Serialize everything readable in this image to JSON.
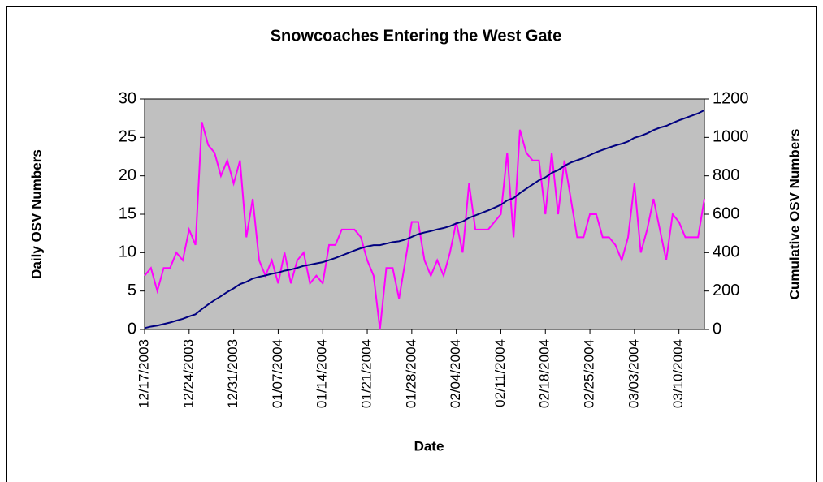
{
  "chart_data": {
    "type": "line",
    "title": "Snowcoaches Entering the West Gate",
    "x_label": "Date",
    "y_label": "Daily OSV Numbers",
    "y2_label": "Cumulative OSV Numbers",
    "categories": [
      "12/17/2003",
      null,
      null,
      null,
      null,
      null,
      null,
      "12/24/2003",
      null,
      null,
      null,
      null,
      null,
      null,
      "12/31/2003",
      null,
      null,
      null,
      null,
      null,
      null,
      "01/07/2004",
      null,
      null,
      null,
      null,
      null,
      null,
      "01/14/2004",
      null,
      null,
      null,
      null,
      null,
      null,
      "01/21/2004",
      null,
      null,
      null,
      null,
      null,
      null,
      "01/28/2004",
      null,
      null,
      null,
      null,
      null,
      null,
      "02/04/2004",
      null,
      null,
      null,
      null,
      null,
      null,
      "02/11/2004",
      null,
      null,
      null,
      null,
      null,
      null,
      "02/18/2004",
      null,
      null,
      null,
      null,
      null,
      null,
      "02/25/2004",
      null,
      null,
      null,
      null,
      null,
      null,
      "03/03/2004",
      null,
      null,
      null,
      null,
      null,
      null,
      "03/10/2004",
      null,
      null,
      null,
      null
    ],
    "series": [
      {
        "name": "Daily OSV Numbers",
        "color": "#ff00ff",
        "axis": "y",
        "values": [
          7,
          8,
          5,
          8,
          8,
          10,
          9,
          13,
          11,
          27,
          24,
          23,
          20,
          22,
          19,
          22,
          12,
          17,
          9,
          7,
          9,
          6,
          10,
          6,
          9,
          10,
          6,
          7,
          6,
          11,
          11,
          13,
          13,
          13,
          12,
          9,
          7,
          0,
          8,
          8,
          4,
          9,
          14,
          14,
          9,
          7,
          9,
          7,
          10,
          14,
          10,
          19,
          13,
          13,
          13,
          14,
          15,
          23,
          12,
          26,
          23,
          22,
          22,
          15,
          23,
          15,
          22,
          17,
          12,
          12,
          15,
          15,
          12,
          12,
          11,
          9,
          12,
          19,
          10,
          13,
          17,
          13,
          9,
          15,
          14,
          12,
          12,
          12,
          17
        ]
      },
      {
        "name": "Cumulative OSV Numbers",
        "color": "#000080",
        "axis": "y2",
        "values": [
          7,
          15,
          20,
          28,
          36,
          46,
          55,
          68,
          79,
          106,
          130,
          153,
          173,
          195,
          214,
          236,
          248,
          265,
          274,
          281,
          290,
          296,
          306,
          312,
          321,
          331,
          337,
          344,
          350,
          361,
          372,
          385,
          398,
          411,
          423,
          432,
          439,
          439,
          447,
          455,
          459,
          468,
          482,
          496,
          505,
          512,
          521,
          528,
          538,
          552,
          562,
          581,
          594,
          607,
          620,
          634,
          649,
          672,
          684,
          710,
          733,
          755,
          777,
          792,
          815,
          830,
          852,
          869,
          881,
          893,
          908,
          923,
          935,
          947,
          958,
          967,
          979,
          998,
          1008,
          1021,
          1038,
          1051,
          1060,
          1075,
          1089,
          1101,
          1113,
          1125,
          1142
        ]
      }
    ],
    "ylim": [
      0,
      30
    ],
    "yticks": [
      0,
      5,
      10,
      15,
      20,
      25,
      30
    ],
    "y2lim": [
      0,
      1200
    ],
    "y2ticks": [
      0,
      200,
      400,
      600,
      800,
      1000,
      1200
    ],
    "grid": false,
    "plot_background": "#c0c0c0"
  }
}
